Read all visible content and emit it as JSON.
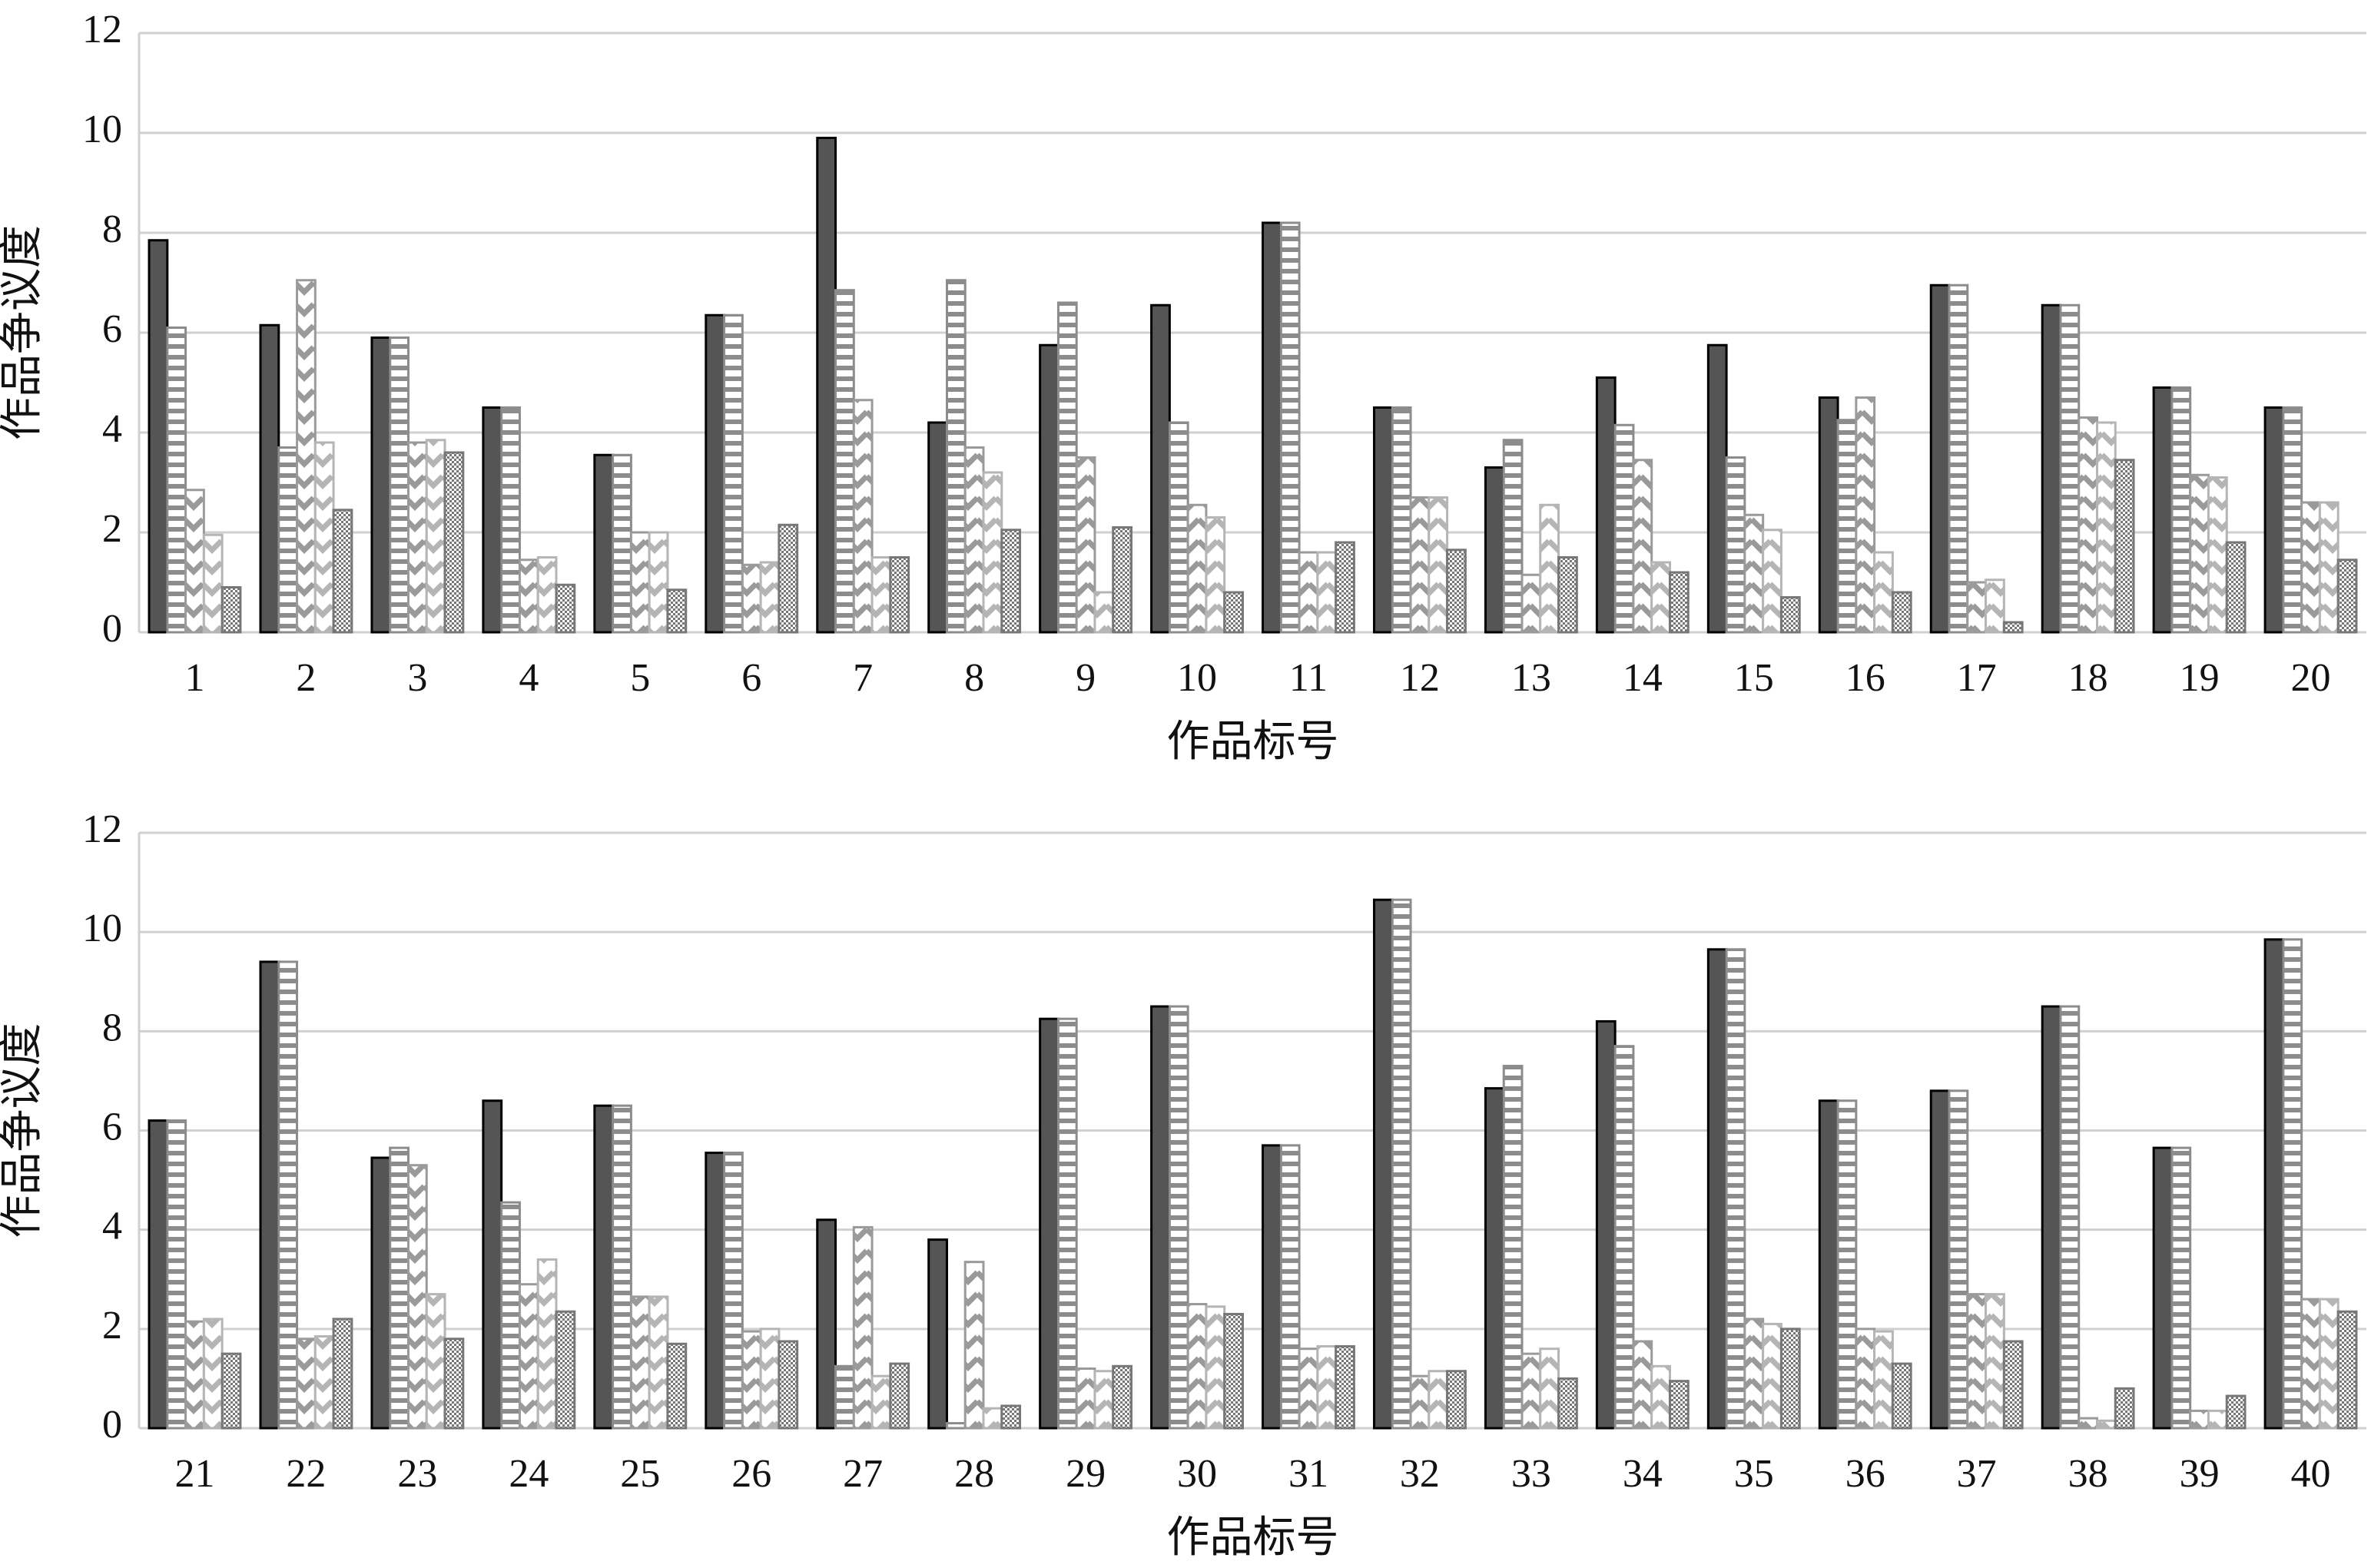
{
  "chart_data": [
    {
      "type": "bar",
      "xlabel": "作品标号",
      "ylabel": "作品争议度",
      "categories": [
        "1",
        "2",
        "3",
        "4",
        "5",
        "6",
        "7",
        "8",
        "9",
        "10",
        "11",
        "12",
        "13",
        "14",
        "15",
        "16",
        "17",
        "18",
        "19",
        "20"
      ],
      "ylim": [
        0,
        12
      ],
      "yticks": [
        0,
        2,
        4,
        6,
        8,
        10,
        12
      ],
      "grid": true,
      "series": [
        {
          "color": "#555555",
          "pattern": "solid",
          "values": [
            7.85,
            6.15,
            5.9,
            4.5,
            3.55,
            6.35,
            9.9,
            4.2,
            5.75,
            6.55,
            8.2,
            4.5,
            3.3,
            5.1,
            5.75,
            4.7,
            6.95,
            6.55,
            4.9,
            4.5
          ]
        },
        {
          "color": "#8c8c8c",
          "pattern": "hstripe",
          "values": [
            6.1,
            3.7,
            5.9,
            4.5,
            3.55,
            6.35,
            6.85,
            7.05,
            6.6,
            4.2,
            8.2,
            4.5,
            3.85,
            4.15,
            3.5,
            4.25,
            6.95,
            6.55,
            4.9,
            4.5
          ]
        },
        {
          "color": "#9a9a9a",
          "pattern": "chevron",
          "values": [
            2.85,
            7.05,
            3.8,
            1.45,
            2.0,
            1.35,
            4.65,
            3.7,
            3.5,
            2.55,
            1.6,
            2.7,
            1.15,
            3.45,
            2.35,
            4.7,
            1.0,
            4.3,
            3.15,
            2.6
          ]
        },
        {
          "color": "#b5b5b5",
          "pattern": "chevron",
          "values": [
            1.95,
            3.8,
            3.85,
            1.5,
            2.0,
            1.4,
            1.5,
            3.2,
            0.8,
            2.3,
            1.6,
            2.7,
            2.55,
            1.4,
            2.05,
            1.6,
            1.05,
            4.2,
            3.1,
            2.6
          ]
        },
        {
          "color": "#777777",
          "pattern": "dots",
          "values": [
            0.9,
            2.45,
            3.6,
            0.95,
            0.85,
            2.15,
            1.5,
            2.05,
            2.1,
            0.8,
            1.8,
            1.65,
            1.5,
            1.2,
            0.7,
            0.8,
            0.2,
            3.45,
            1.8,
            1.45
          ]
        }
      ]
    },
    {
      "type": "bar",
      "xlabel": "作品标号",
      "ylabel": "作品争议度",
      "categories": [
        "21",
        "22",
        "23",
        "24",
        "25",
        "26",
        "27",
        "28",
        "29",
        "30",
        "31",
        "32",
        "33",
        "34",
        "35",
        "36",
        "37",
        "38",
        "39",
        "40"
      ],
      "ylim": [
        0,
        12
      ],
      "yticks": [
        0,
        2,
        4,
        6,
        8,
        10,
        12
      ],
      "grid": true,
      "series": [
        {
          "color": "#555555",
          "pattern": "solid",
          "values": [
            6.2,
            9.4,
            5.45,
            6.6,
            6.5,
            5.55,
            4.2,
            3.8,
            8.25,
            8.5,
            5.7,
            10.65,
            6.85,
            8.2,
            9.65,
            6.6,
            6.8,
            8.5,
            5.65,
            9.85
          ]
        },
        {
          "color": "#8c8c8c",
          "pattern": "hstripe",
          "values": [
            6.2,
            9.4,
            5.65,
            4.55,
            6.5,
            5.55,
            1.25,
            0.1,
            8.25,
            8.5,
            5.7,
            10.65,
            7.3,
            7.7,
            9.65,
            6.6,
            6.8,
            8.5,
            5.65,
            9.85
          ]
        },
        {
          "color": "#9a9a9a",
          "pattern": "chevron",
          "values": [
            2.15,
            1.8,
            5.3,
            2.9,
            2.65,
            1.95,
            4.05,
            3.35,
            1.2,
            2.5,
            1.6,
            1.05,
            1.5,
            1.75,
            2.2,
            2.0,
            2.7,
            0.2,
            0.35,
            2.6
          ]
        },
        {
          "color": "#b5b5b5",
          "pattern": "chevron",
          "values": [
            2.2,
            1.85,
            2.7,
            3.4,
            2.65,
            2.0,
            1.05,
            0.4,
            1.15,
            2.45,
            1.65,
            1.15,
            1.6,
            1.25,
            2.1,
            1.95,
            2.7,
            0.15,
            0.35,
            2.6
          ]
        },
        {
          "color": "#777777",
          "pattern": "dots",
          "values": [
            1.5,
            2.2,
            1.8,
            2.35,
            1.7,
            1.75,
            1.3,
            0.45,
            1.25,
            2.3,
            1.65,
            1.15,
            1.0,
            0.95,
            2.0,
            1.3,
            1.75,
            0.8,
            0.65,
            2.35
          ]
        }
      ]
    }
  ]
}
